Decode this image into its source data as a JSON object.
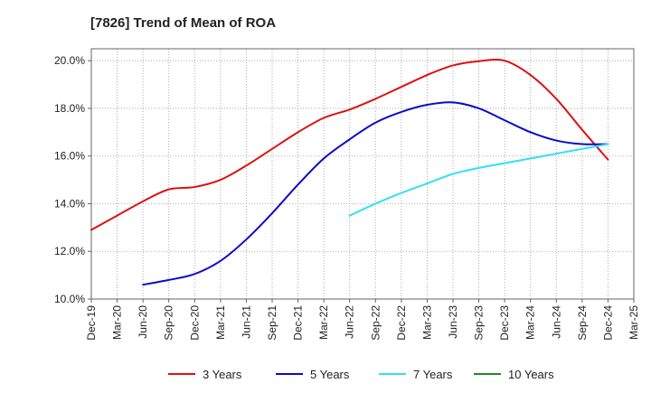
{
  "chart_data": {
    "type": "line",
    "title": "[7826]  Trend of Mean of ROA",
    "xlabel": "",
    "ylabel": "",
    "x": [
      "Dec-19",
      "Mar-20",
      "Jun-20",
      "Sep-20",
      "Dec-20",
      "Mar-21",
      "Jun-21",
      "Sep-21",
      "Dec-21",
      "Mar-22",
      "Jun-22",
      "Sep-22",
      "Dec-22",
      "Mar-23",
      "Jun-23",
      "Sep-23",
      "Dec-23",
      "Mar-24",
      "Jun-24",
      "Sep-24",
      "Dec-24",
      "Mar-25"
    ],
    "ylim": [
      10.0,
      20.5
    ],
    "yticks": [
      10.0,
      12.0,
      14.0,
      16.0,
      18.0,
      20.0
    ],
    "ytick_labels": [
      "10.0%",
      "12.0%",
      "14.0%",
      "16.0%",
      "18.0%",
      "20.0%"
    ],
    "grid": true,
    "legend_position": "bottom",
    "series": [
      {
        "name": "3 Years",
        "color": "#dd1111",
        "values": [
          12.9,
          13.5,
          14.1,
          14.6,
          14.7,
          15.0,
          15.6,
          16.3,
          17.0,
          17.6,
          17.95,
          18.4,
          18.9,
          19.4,
          19.8,
          19.98,
          20.0,
          19.4,
          18.4,
          17.1,
          15.85,
          null
        ]
      },
      {
        "name": "5 Years",
        "color": "#0a0acc",
        "values": [
          null,
          null,
          10.6,
          10.8,
          11.05,
          11.6,
          12.5,
          13.6,
          14.8,
          15.9,
          16.7,
          17.4,
          17.85,
          18.15,
          18.25,
          18.0,
          17.5,
          17.0,
          16.65,
          16.5,
          16.5,
          null
        ]
      },
      {
        "name": "7 Years",
        "color": "#33e0f0",
        "values": [
          null,
          null,
          null,
          null,
          null,
          null,
          null,
          null,
          null,
          null,
          13.5,
          14.0,
          14.45,
          14.85,
          15.25,
          15.5,
          15.7,
          15.9,
          16.1,
          16.3,
          16.5,
          null
        ]
      },
      {
        "name": "10 Years",
        "color": "#228822",
        "values": [
          null,
          null,
          null,
          null,
          null,
          null,
          null,
          null,
          null,
          null,
          null,
          null,
          null,
          null,
          null,
          null,
          null,
          null,
          null,
          null,
          null,
          null
        ]
      }
    ]
  }
}
